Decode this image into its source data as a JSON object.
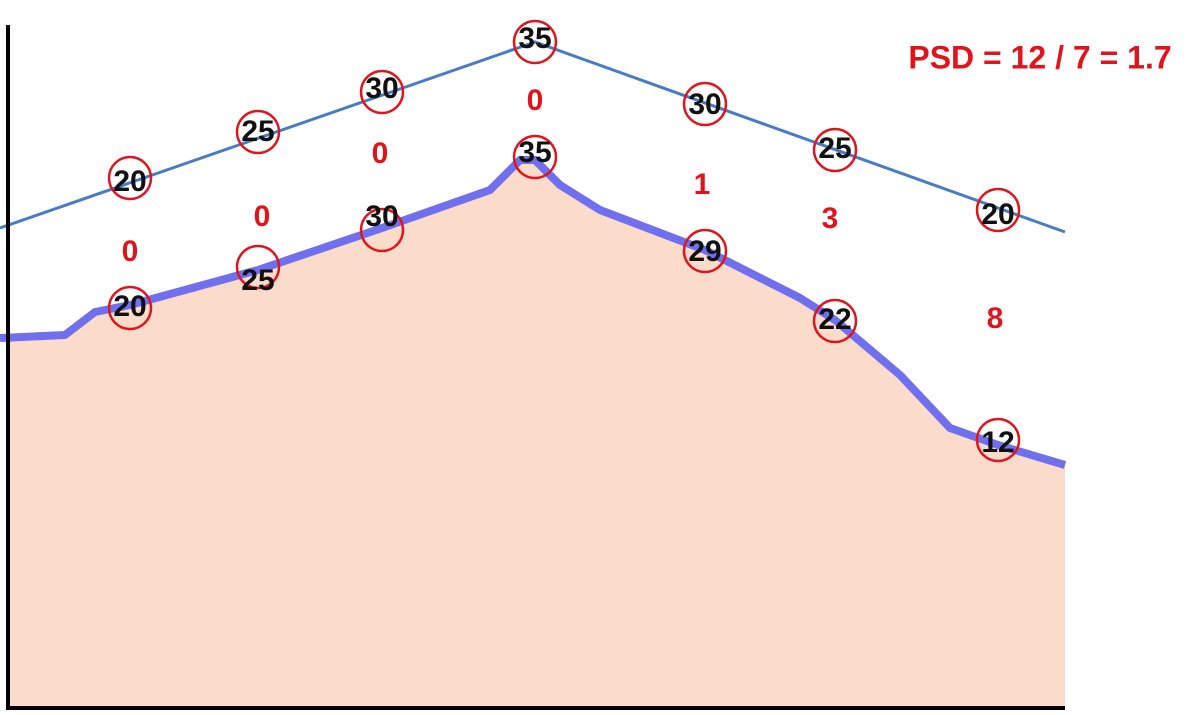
{
  "annotation": "PSD = 12 / 7 = 1.7",
  "expected": [
    20,
    25,
    30,
    35,
    30,
    25,
    20
  ],
  "measured": [
    20,
    25,
    30,
    35,
    29,
    22,
    12
  ],
  "differences": [
    0,
    0,
    0,
    0,
    1,
    3,
    8
  ]
}
